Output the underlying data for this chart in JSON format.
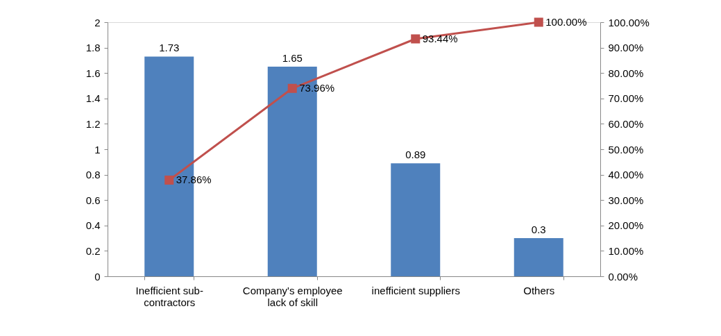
{
  "chart_data": {
    "type": "bar",
    "categories": [
      "Inefficient sub-contractors",
      "Company's employee lack of skill",
      "inefficient suppliers",
      "Others"
    ],
    "series": [
      {
        "color": "#4f81bd",
        "values": [
          1.73,
          1.65,
          0.89,
          0.3
        ],
        "value_labels": [
          "1.73",
          "1.65",
          "0.89",
          "0.3"
        ]
      },
      {
        "type": "line",
        "axis": "y2",
        "color": "#c0504d",
        "marker": "square",
        "values": [
          37.86,
          73.96,
          93.44,
          100
        ],
        "value_labels": [
          "37.86%",
          "73.96%",
          "93.44%",
          "100.00%"
        ]
      }
    ],
    "ylim": [
      0,
      2
    ],
    "yticks": [
      0,
      0.2,
      0.4,
      0.6,
      0.8,
      1,
      1.2,
      1.4,
      1.6,
      1.8,
      2
    ],
    "y2lim": [
      0,
      100
    ],
    "y2ticks": [
      {
        "value": 0,
        "label": "0.00%"
      },
      {
        "value": 10,
        "label": "10.00%"
      },
      {
        "value": 20,
        "label": "20.00%"
      },
      {
        "value": 30,
        "label": "30.00%"
      },
      {
        "value": 40,
        "label": "40.00%"
      },
      {
        "value": 50,
        "label": "50.00%"
      },
      {
        "value": 60,
        "label": "60.00%"
      },
      {
        "value": 70,
        "label": "70.00%"
      },
      {
        "value": 80,
        "label": "80.00%"
      },
      {
        "value": 90,
        "label": "90.00%"
      },
      {
        "value": 100,
        "label": "100.00%"
      }
    ]
  }
}
